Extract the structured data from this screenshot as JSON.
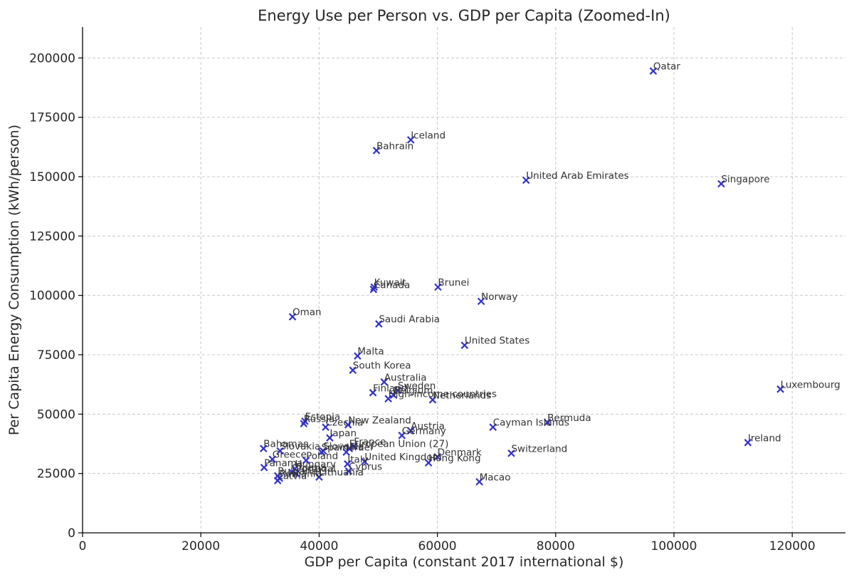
{
  "chart_data": {
    "type": "scatter",
    "title": "Energy Use per Person vs. GDP per Capita (Zoomed-In)",
    "xlabel": "GDP per Capita (constant 2017 international $)",
    "ylabel": "Per Capita Energy Consumption (kWh/person)",
    "xlim": [
      0,
      129000
    ],
    "ylim": [
      0,
      213000
    ],
    "xticks": [
      0,
      20000,
      40000,
      60000,
      80000,
      100000,
      120000
    ],
    "yticks": [
      0,
      25000,
      50000,
      75000,
      100000,
      125000,
      150000,
      175000,
      200000
    ],
    "grid": true,
    "marker": "x",
    "marker_color": "#3333cc",
    "points": [
      {
        "label": "Qatar",
        "x": 96500,
        "y": 194500
      },
      {
        "label": "Iceland",
        "x": 55500,
        "y": 165500
      },
      {
        "label": "Bahrain",
        "x": 49700,
        "y": 161000
      },
      {
        "label": "United Arab Emirates",
        "x": 75000,
        "y": 148500
      },
      {
        "label": "Singapore",
        "x": 108000,
        "y": 147000
      },
      {
        "label": "Kuwait",
        "x": 49300,
        "y": 103500
      },
      {
        "label": "Canada",
        "x": 49200,
        "y": 102500
      },
      {
        "label": "Brunei",
        "x": 60100,
        "y": 103500
      },
      {
        "label": "Norway",
        "x": 67400,
        "y": 97500
      },
      {
        "label": "Oman",
        "x": 35500,
        "y": 91000
      },
      {
        "label": "Saudi Arabia",
        "x": 50100,
        "y": 88000
      },
      {
        "label": "United States",
        "x": 64600,
        "y": 79000
      },
      {
        "label": "Malta",
        "x": 46500,
        "y": 74500
      },
      {
        "label": "South Korea",
        "x": 45700,
        "y": 68500
      },
      {
        "label": "Australia",
        "x": 51000,
        "y": 63500
      },
      {
        "label": "Sweden",
        "x": 53300,
        "y": 60000
      },
      {
        "label": "Finland",
        "x": 49100,
        "y": 59000
      },
      {
        "label": "Belgium",
        "x": 52600,
        "y": 58000
      },
      {
        "label": "High-income countries",
        "x": 51700,
        "y": 56500
      },
      {
        "label": "Netherlands",
        "x": 59200,
        "y": 56000
      },
      {
        "label": "Luxembourg",
        "x": 118000,
        "y": 60500
      },
      {
        "label": "Bermuda",
        "x": 78600,
        "y": 46500
      },
      {
        "label": "Cayman Islands",
        "x": 69400,
        "y": 44500
      },
      {
        "label": "Estonia",
        "x": 37600,
        "y": 47000
      },
      {
        "label": "Russia",
        "x": 37400,
        "y": 46000
      },
      {
        "label": "New Zealand",
        "x": 44900,
        "y": 45500
      },
      {
        "label": "Czechia",
        "x": 41100,
        "y": 44500
      },
      {
        "label": "Austria",
        "x": 55500,
        "y": 43000
      },
      {
        "label": "Germany",
        "x": 54000,
        "y": 41000
      },
      {
        "label": "Japan",
        "x": 41800,
        "y": 40000
      },
      {
        "label": "Ireland",
        "x": 112500,
        "y": 38000
      },
      {
        "label": "France",
        "x": 45900,
        "y": 36500
      },
      {
        "label": "European Union (27)",
        "x": 45100,
        "y": 35500
      },
      {
        "label": "Bahamas",
        "x": 30600,
        "y": 35500
      },
      {
        "label": "Slovakia",
        "x": 33400,
        "y": 34500
      },
      {
        "label": "Slovenia",
        "x": 40700,
        "y": 34500
      },
      {
        "label": "Spain",
        "x": 40400,
        "y": 34000
      },
      {
        "label": "Israel",
        "x": 44600,
        "y": 34000
      },
      {
        "label": "Switzerland",
        "x": 72500,
        "y": 33500
      },
      {
        "label": "Denmark",
        "x": 60000,
        "y": 32000
      },
      {
        "label": "Greece",
        "x": 32100,
        "y": 31000
      },
      {
        "label": "Poland",
        "x": 37800,
        "y": 30500
      },
      {
        "label": "United Kingdom",
        "x": 47700,
        "y": 30000
      },
      {
        "label": "Italy",
        "x": 44800,
        "y": 29000
      },
      {
        "label": "Hong Kong",
        "x": 58500,
        "y": 29500
      },
      {
        "label": "Panama",
        "x": 30700,
        "y": 27500
      },
      {
        "label": "Hungary",
        "x": 35900,
        "y": 27000
      },
      {
        "label": "Cyprus",
        "x": 45000,
        "y": 26000
      },
      {
        "label": "Croatia",
        "x": 35400,
        "y": 25500
      },
      {
        "label": "Portugal",
        "x": 36100,
        "y": 25000
      },
      {
        "label": "Lithuania",
        "x": 40000,
        "y": 23500
      },
      {
        "label": "Bulgaria",
        "x": 33000,
        "y": 24000
      },
      {
        "label": "Romania",
        "x": 33300,
        "y": 23000
      },
      {
        "label": "Latvia",
        "x": 33000,
        "y": 22000
      },
      {
        "label": "Macao",
        "x": 67100,
        "y": 21500
      }
    ]
  }
}
